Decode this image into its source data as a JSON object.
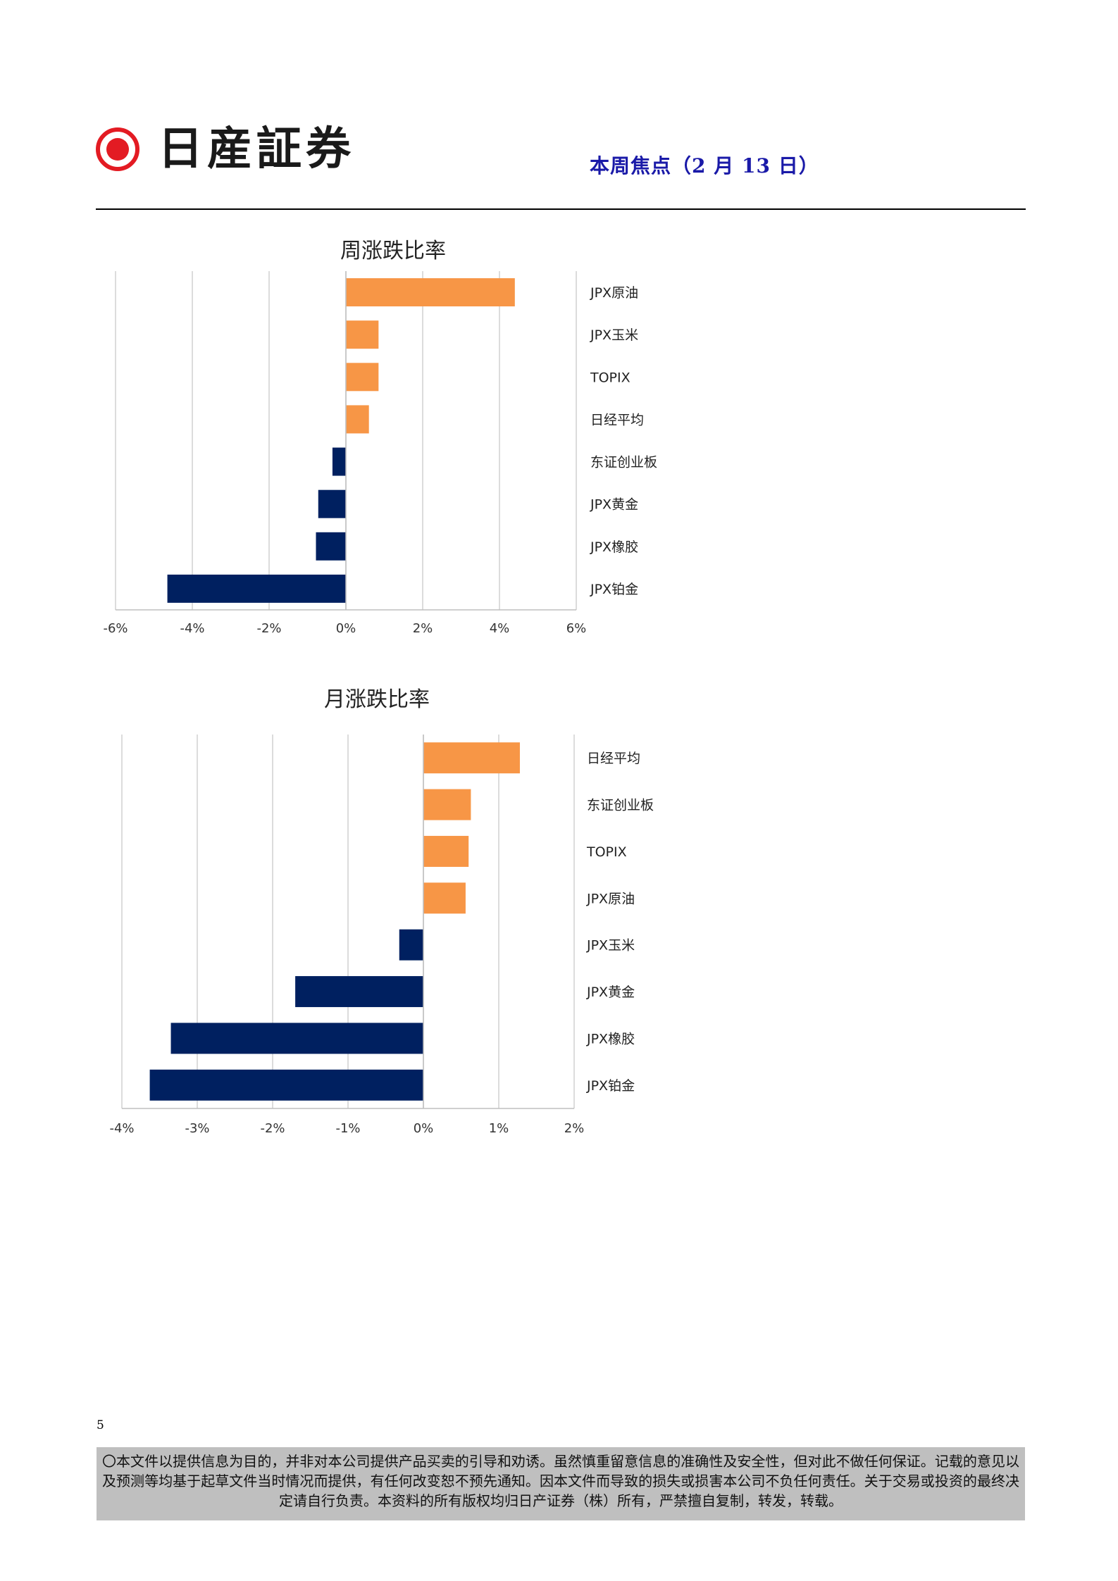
{
  "header": {
    "company_name": "日産証券",
    "report_title": "本周焦点（2 月 13 日）",
    "brand_color": "#e31b23",
    "title_color": "#1a1aa8"
  },
  "chart_data": [
    {
      "type": "bar",
      "orientation": "horizontal",
      "title": "周涨跌比率",
      "categories": [
        "JPX原油",
        "JPX玉米",
        "TOPIX",
        "日经平均",
        "东证创业板",
        "JPX黄金",
        "JPX橡胶",
        "JPX铂金"
      ],
      "values": [
        4.4,
        0.85,
        0.85,
        0.6,
        -0.35,
        -0.72,
        -0.78,
        -4.65
      ],
      "xlim": [
        -6,
        6
      ],
      "ticks": [
        -6,
        -4,
        -2,
        0,
        2,
        4,
        6
      ],
      "tick_labels": [
        "-6%",
        "-4%",
        "-2%",
        "0%",
        "2%",
        "4%",
        "6%"
      ],
      "positive_color": "#f79646",
      "negative_color": "#002060",
      "grid": true,
      "legend": "none"
    },
    {
      "type": "bar",
      "orientation": "horizontal",
      "title": "月涨跌比率",
      "categories": [
        "日经平均",
        "东证创业板",
        "TOPIX",
        "JPX原油",
        "JPX玉米",
        "JPX黄金",
        "JPX橡胶",
        "JPX铂金"
      ],
      "values": [
        1.28,
        0.63,
        0.6,
        0.56,
        -0.32,
        -1.7,
        -3.35,
        -3.63
      ],
      "xlim": [
        -4,
        2
      ],
      "ticks": [
        -4,
        -3,
        -2,
        -1,
        0,
        1,
        2
      ],
      "tick_labels": [
        "-4%",
        "-3%",
        "-2%",
        "-1%",
        "0%",
        "1%",
        "2%"
      ],
      "positive_color": "#f79646",
      "negative_color": "#002060",
      "grid": true,
      "legend": "none"
    }
  ],
  "footer": {
    "page_number": "5",
    "disclaimer": "〇本文件以提供信息为目的，并非对本公司提供产品买卖的引导和劝诱。虽然慎重留意信息的准确性及安全性，但对此不做任何保证。记载的意见以及预测等均基于起草文件当时情况而提供，有任何改变恕不预先通知。因本文件而导致的损失或损害本公司不负任何责任。关于交易或投资的最终决定请自行负责。本资料的所有版权均归日产证券（株）所有，严禁擅自复制，转发，转载。"
  }
}
